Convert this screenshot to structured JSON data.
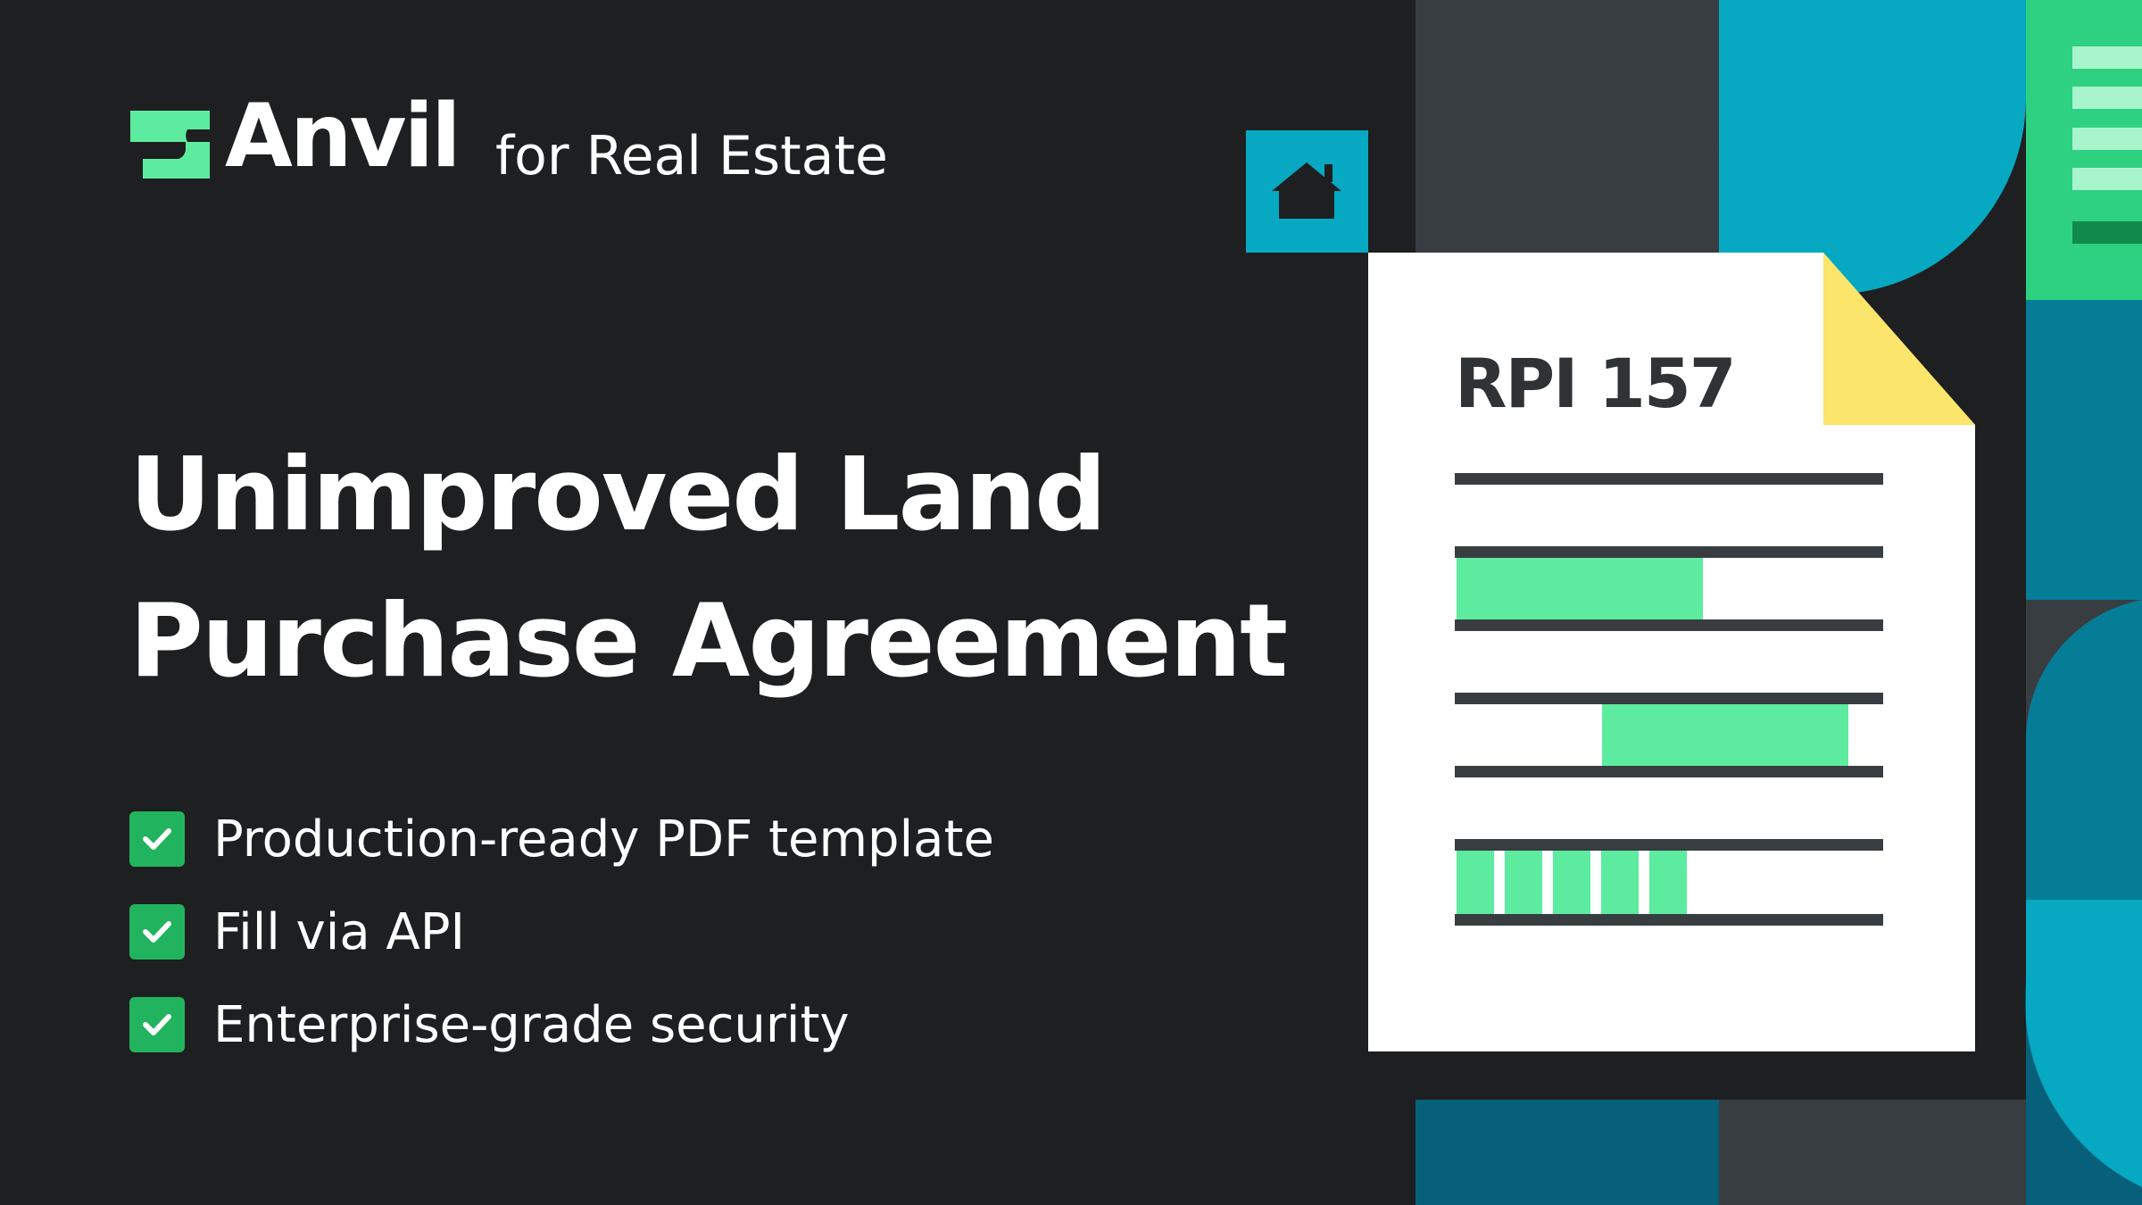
{
  "brand": {
    "name": "Anvil",
    "tagline": "for Real Estate"
  },
  "headline": {
    "line1": "Unimproved Land",
    "line2": "Purchase Agreement"
  },
  "features": [
    {
      "label": "Production-ready PDF template",
      "icon": "check-icon"
    },
    {
      "label": "Fill via API",
      "icon": "check-icon"
    },
    {
      "label": "Enterprise-grade security",
      "icon": "check-icon"
    }
  ],
  "document": {
    "title": "RPI 157",
    "icon": "house-icon"
  },
  "colors": {
    "background": "#1e1f21",
    "brand_green": "#5dec9f",
    "check_green": "#22b35e",
    "teal": "#06a8c2",
    "yellow": "#fbe56b"
  }
}
